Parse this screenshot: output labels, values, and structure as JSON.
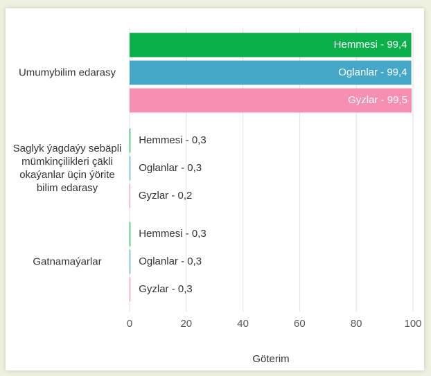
{
  "chart_data": {
    "type": "hbar",
    "categories": [
      "Umumybilim edarasy",
      "Saglyk ýagdaýy sebäpli mümkinçilikleri çäkli okaýanlar üçin ýörite bilim edarasy",
      "Gatnamaýarlar"
    ],
    "series": [
      {
        "name": "Hemmesi",
        "color": "#0bb04b",
        "values": [
          99.4,
          0.3,
          0.3
        ],
        "value_labels": [
          "Hemmesi - 99,4",
          "Hemmesi - 0,3",
          "Hemmesi - 0,3"
        ]
      },
      {
        "name": "Oglanlar",
        "color": "#45a8c8",
        "values": [
          99.4,
          0.3,
          0.3
        ],
        "value_labels": [
          "Oglanlar - 99,4",
          "Oglanlar - 0,3",
          "Oglanlar - 0,3"
        ]
      },
      {
        "name": "Gyzlar",
        "color": "#f78fb3",
        "values": [
          99.5,
          0.2,
          0.3
        ],
        "value_labels": [
          "Gyzlar - 99,5",
          "Gyzlar - 0,2",
          "Gyzlar - 0,3"
        ]
      }
    ],
    "xlim": [
      0,
      100
    ],
    "xticks": [
      0,
      20,
      40,
      60,
      80,
      100
    ],
    "xlabel": "Göterim",
    "grid": true
  }
}
